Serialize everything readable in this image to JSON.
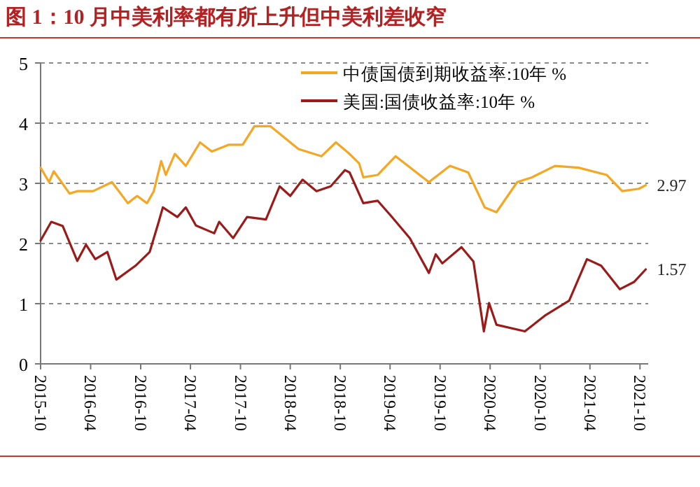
{
  "chart_data": {
    "type": "line",
    "title": "图 1：10 月中美利率都有所上升但中美利差收窄",
    "xlim": [
      "2015-10-01",
      "2021-10-31"
    ],
    "xticks": [
      {
        "value": "2015-10-01",
        "label": "2015-10"
      },
      {
        "value": "2016-04-01",
        "label": "2016-04"
      },
      {
        "value": "2016-10-01",
        "label": "2016-10"
      },
      {
        "value": "2017-04-01",
        "label": "2017-04"
      },
      {
        "value": "2017-10-01",
        "label": "2017-10"
      },
      {
        "value": "2018-04-01",
        "label": "2018-04"
      },
      {
        "value": "2018-10-01",
        "label": "2018-10"
      },
      {
        "value": "2019-04-01",
        "label": "2019-04"
      },
      {
        "value": "2019-10-01",
        "label": "2019-10"
      },
      {
        "value": "2020-04-01",
        "label": "2020-04"
      },
      {
        "value": "2020-10-01",
        "label": "2020-10"
      },
      {
        "value": "2021-04-01",
        "label": "2021-04"
      },
      {
        "value": "2021-10-01",
        "label": "2021-10"
      }
    ],
    "ylim": [
      0,
      5
    ],
    "yticks": [
      0,
      1,
      2,
      3,
      4,
      5
    ],
    "grid": "y",
    "legend": "top right",
    "line_style": "solid",
    "marker": "none",
    "series": [
      {
        "name": "中债国债到期收益率:10年 %",
        "color": "#f5a623",
        "x": [
          "2015-10-01",
          "2015-11-01",
          "2015-11-18",
          "2016-01-15",
          "2016-02-12",
          "2016-04-10",
          "2016-06-18",
          "2016-08-15",
          "2016-09-18",
          "2016-10-24",
          "2016-11-18",
          "2016-12-15",
          "2017-01-01",
          "2017-02-03",
          "2017-03-15",
          "2017-05-06",
          "2017-06-18",
          "2017-08-18",
          "2017-10-09",
          "2017-11-21",
          "2018-01-18",
          "2018-05-01",
          "2018-07-24",
          "2018-09-15",
          "2018-11-01",
          "2018-12-09",
          "2018-12-24",
          "2019-02-15",
          "2019-04-21",
          "2019-08-21",
          "2019-11-06",
          "2020-01-12",
          "2020-03-12",
          "2020-04-24",
          "2020-07-09",
          "2020-09-01",
          "2020-11-24",
          "2021-02-18",
          "2021-06-01",
          "2021-07-28",
          "2021-09-27",
          "2021-10-22"
        ],
        "values": [
          3.26,
          3.02,
          3.2,
          2.83,
          2.87,
          2.87,
          3.02,
          2.67,
          2.79,
          2.67,
          2.87,
          3.37,
          3.14,
          3.49,
          3.29,
          3.68,
          3.53,
          3.64,
          3.64,
          3.95,
          3.95,
          3.57,
          3.45,
          3.68,
          3.5,
          3.33,
          3.1,
          3.14,
          3.45,
          3.02,
          3.29,
          3.18,
          2.6,
          2.52,
          3.02,
          3.1,
          3.29,
          3.26,
          3.14,
          2.87,
          2.91,
          2.97
        ],
        "value_labels": [
          null,
          null,
          null,
          null,
          null,
          null,
          null,
          null,
          null,
          null,
          null,
          null,
          null,
          null,
          null,
          null,
          null,
          null,
          null,
          null,
          null,
          null,
          null,
          null,
          null,
          null,
          null,
          null,
          null,
          null,
          null,
          null,
          null,
          null,
          null,
          null,
          null,
          null,
          null,
          null,
          null,
          "2.97"
        ]
      },
      {
        "name": "美国:国债收益率:10年 %",
        "color": "#9b1b1b",
        "x": [
          "2015-10-01",
          "2015-11-09",
          "2015-12-21",
          "2016-02-12",
          "2016-03-15",
          "2016-04-18",
          "2016-06-01",
          "2016-07-04",
          "2016-09-12",
          "2016-11-03",
          "2016-12-06",
          "2016-12-21",
          "2017-02-12",
          "2017-03-15",
          "2017-04-21",
          "2017-06-27",
          "2017-07-15",
          "2017-09-04",
          "2017-10-25",
          "2018-01-02",
          "2018-02-21",
          "2018-04-01",
          "2018-05-16",
          "2018-07-06",
          "2018-08-27",
          "2018-10-18",
          "2018-11-04",
          "2018-12-24",
          "2019-02-15",
          "2019-04-06",
          "2019-06-12",
          "2019-08-21",
          "2019-09-15",
          "2019-10-09",
          "2019-12-18",
          "2020-01-31",
          "2020-03-09",
          "2020-03-28",
          "2020-04-24",
          "2020-08-06",
          "2020-10-21",
          "2021-01-15",
          "2021-03-21",
          "2021-05-12",
          "2021-07-19",
          "2021-09-09",
          "2021-10-22"
        ],
        "values": [
          2.05,
          2.36,
          2.29,
          1.71,
          1.98,
          1.74,
          1.86,
          1.4,
          1.63,
          1.86,
          2.36,
          2.6,
          2.44,
          2.6,
          2.3,
          2.17,
          2.36,
          2.09,
          2.44,
          2.4,
          2.95,
          2.79,
          3.06,
          2.87,
          2.95,
          3.22,
          3.18,
          2.67,
          2.71,
          2.45,
          2.09,
          1.51,
          1.82,
          1.67,
          1.94,
          1.7,
          0.54,
          1.01,
          0.65,
          0.54,
          0.81,
          1.05,
          1.74,
          1.63,
          1.24,
          1.36,
          1.57
        ],
        "value_labels": [
          null,
          null,
          null,
          null,
          null,
          null,
          null,
          null,
          null,
          null,
          null,
          null,
          null,
          null,
          null,
          null,
          null,
          null,
          null,
          null,
          null,
          null,
          null,
          null,
          null,
          null,
          null,
          null,
          null,
          null,
          null,
          null,
          null,
          null,
          null,
          null,
          null,
          null,
          null,
          null,
          null,
          null,
          null,
          null,
          null,
          null,
          "1.57"
        ]
      }
    ]
  }
}
